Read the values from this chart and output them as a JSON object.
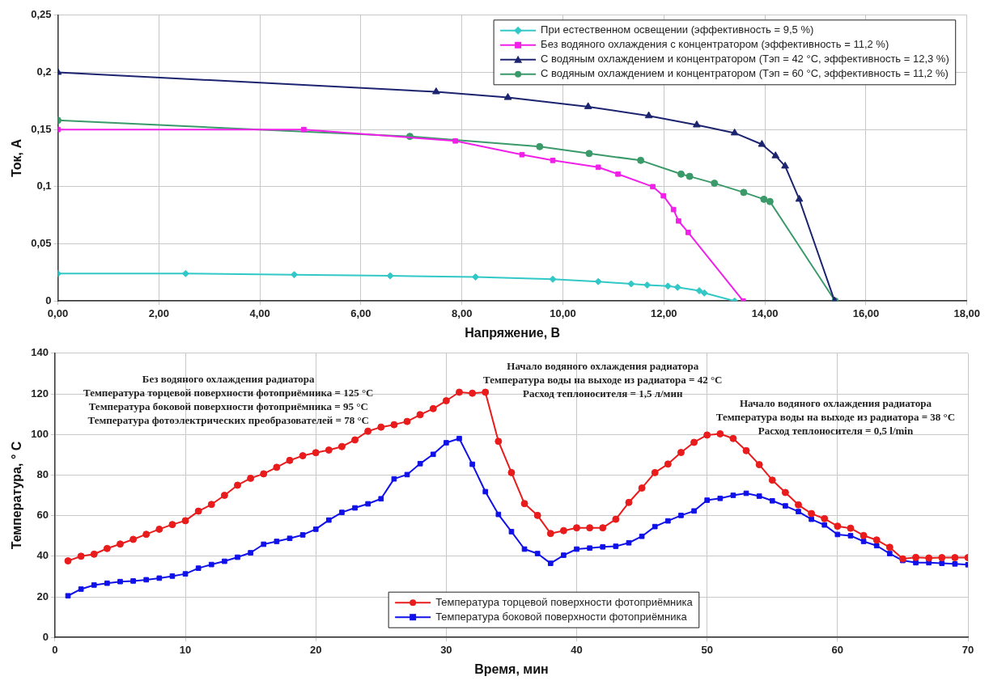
{
  "chart_data": [
    {
      "type": "line",
      "xlabel": "Напряжение, В",
      "ylabel": "Ток, А",
      "xlim": [
        0,
        18
      ],
      "ylim": [
        0,
        0.25
      ],
      "xticks": [
        {
          "value": 0,
          "label": "0,00"
        },
        {
          "value": 2,
          "label": "2,00"
        },
        {
          "value": 4,
          "label": "4,00"
        },
        {
          "value": 6,
          "label": "6,00"
        },
        {
          "value": 8,
          "label": "8,00"
        },
        {
          "value": 10,
          "label": "10,00"
        },
        {
          "value": 12,
          "label": "12,00"
        },
        {
          "value": 14,
          "label": "14,00"
        },
        {
          "value": 16,
          "label": "16,00"
        },
        {
          "value": 18,
          "label": "18,00"
        }
      ],
      "yticks": [
        0,
        {
          "value": 0.05,
          "label": "0,05"
        },
        {
          "value": 0.1,
          "label": "0,1"
        },
        {
          "value": 0.15,
          "label": "0,15"
        },
        {
          "value": 0.2,
          "label": "0,2"
        },
        {
          "value": 0.25,
          "label": "0,25"
        }
      ],
      "grid": true,
      "legend": "top right",
      "line_style": "solid",
      "series": [
        {
          "name": "При естественном освещении (эффективность = 9,5 %)",
          "color": "#33c8c8",
          "marker": "diamond",
          "x": [
            0,
            2.53,
            4.68,
            6.58,
            8.27,
            9.8,
            10.7,
            11.35,
            11.67,
            12.08,
            12.27,
            12.7,
            12.8,
            13.4
          ],
          "values": [
            0.024,
            0.024,
            0.023,
            0.022,
            0.021,
            0.019,
            0.017,
            0.015,
            0.014,
            0.013,
            0.012,
            0.009,
            0.007,
            0
          ]
        },
        {
          "name": "Без водяного охлаждения с концентратором (эффективность = 11,2 %)",
          "color": "#f020e8",
          "marker": "square",
          "x": [
            0,
            4.87,
            7.87,
            9.19,
            9.8,
            10.7,
            11.09,
            11.78,
            11.99,
            12.19,
            12.29,
            12.48,
            13.57
          ],
          "values": [
            0.15,
            0.15,
            0.14,
            0.128,
            0.123,
            0.117,
            0.111,
            0.1,
            0.092,
            0.08,
            0.07,
            0.06,
            0
          ]
        },
        {
          "name": "С водяным охлаждением и концентратором (Тэп = 42 °С, эффективность = 12,3 %)",
          "color": "#1c2470",
          "marker": "triangle",
          "x": [
            0,
            7.49,
            8.91,
            10.5,
            11.7,
            12.65,
            13.4,
            13.94,
            14.21,
            14.4,
            14.68,
            15.38
          ],
          "values": [
            0.2,
            0.183,
            0.178,
            0.17,
            0.162,
            0.154,
            0.147,
            0.137,
            0.127,
            0.118,
            0.089,
            0
          ]
        },
        {
          "name": "С водяным охлаждением и концентратором (Тэп = 60 °С, эффективность = 11,2 %)",
          "color": "#3a9a6a",
          "marker": "circle",
          "x": [
            0,
            6.97,
            9.54,
            10.52,
            11.54,
            12.34,
            12.51,
            13.0,
            13.58,
            13.98,
            14.1,
            15.39
          ],
          "values": [
            0.158,
            0.144,
            0.135,
            0.129,
            0.123,
            0.111,
            0.109,
            0.103,
            0.095,
            0.089,
            0.087,
            0
          ]
        }
      ]
    },
    {
      "type": "line",
      "xlabel": "Время, мин",
      "ylabel": "Температура, ° С",
      "xlim": [
        0,
        70
      ],
      "ylim": [
        0,
        140
      ],
      "xticks": [
        0,
        10,
        20,
        30,
        40,
        50,
        60,
        70
      ],
      "yticks": [
        0,
        20,
        40,
        60,
        80,
        100,
        120,
        140
      ],
      "grid": true,
      "legend": "bottom",
      "line_style": "solid",
      "annotations": [
        "Без водяного охлаждения радиатора\nТемпература торцевой поверхности фотоприёмника = 125 °С\nТемпература боковой поверхности фотоприёмника = 95 °С\nТемпература фотоэлектрических преобразователей = 78 °С",
        "Начало водяного охлаждения радиатора\nТемпература воды на выходе из радиатора = 42 °С\nРасход теплоносителя = 1,5 л/мин",
        "Начало водяного охлаждения радиатора\nТемпература воды на выходе из радиатора = 38 °С\nРасход теплоносителя = 0,5 l/min"
      ],
      "x": [
        1,
        2,
        3,
        4,
        5,
        6,
        7,
        8,
        9,
        10,
        11,
        12,
        13,
        14,
        15,
        16,
        17,
        18,
        19,
        20,
        21,
        22,
        23,
        24,
        25,
        26,
        27,
        28,
        29,
        30,
        31,
        32,
        33,
        34,
        35,
        36,
        37,
        38,
        39,
        40,
        41,
        42,
        43,
        44,
        45,
        46,
        47,
        48,
        49,
        50,
        51,
        52,
        53,
        54,
        55,
        56,
        57,
        58,
        59,
        60,
        61,
        62,
        63,
        64,
        65,
        66,
        67,
        68,
        69,
        70
      ],
      "series": [
        {
          "name": "Температура торцевой поверхности фотоприёмника",
          "color": "#e81c1c",
          "marker": "circle",
          "values": [
            37.7,
            40,
            41,
            43.8,
            46,
            48.3,
            50.8,
            53.3,
            55.6,
            57.5,
            62.2,
            65.5,
            70,
            75,
            78.4,
            80.6,
            83.8,
            87.2,
            89.5,
            91,
            92.3,
            94,
            97.3,
            101.6,
            103.6,
            104.8,
            106.4,
            109.7,
            112.7,
            116.6,
            120.8,
            120.3,
            120.8,
            96.6,
            81.2,
            65.9,
            60.1,
            51.2,
            52.6,
            54,
            54,
            54,
            58.2,
            66.5,
            73.6,
            81.2,
            85.4,
            91.1,
            96.1,
            99.7,
            100.3,
            98,
            92,
            85.1,
            77.5,
            71.4,
            65.3,
            61,
            58.5,
            54.8,
            53.8,
            50.2,
            48,
            44.4,
            38.7,
            39.4,
            39.1,
            39.3,
            39.3,
            39.3
          ]
        },
        {
          "name": "Температура боковой поверхности фотоприёмника",
          "color": "#1010e8",
          "marker": "square",
          "values": [
            20.5,
            23.8,
            25.8,
            26.7,
            27.5,
            27.8,
            28.4,
            29.2,
            30.2,
            31.3,
            34.1,
            35.9,
            37.5,
            39.5,
            41.7,
            45.9,
            47.3,
            48.8,
            50.5,
            53.3,
            57.8,
            61.6,
            63.8,
            65.8,
            68.3,
            78.1,
            80.2,
            85.6,
            90.2,
            95.9,
            98,
            85.3,
            71.8,
            60.6,
            52.1,
            43.5,
            41.3,
            36.5,
            40.5,
            43.5,
            44,
            44.6,
            44.9,
            46.6,
            49.8,
            54.6,
            57.4,
            60.1,
            62.3,
            67.6,
            68.5,
            70,
            71,
            69.6,
            67.3,
            64.8,
            62,
            58.2,
            55.4,
            50.7,
            50.1,
            47.3,
            45.2,
            41.3,
            37.9,
            36.8,
            36.8,
            36.5,
            36.2,
            35.8
          ]
        }
      ]
    }
  ]
}
